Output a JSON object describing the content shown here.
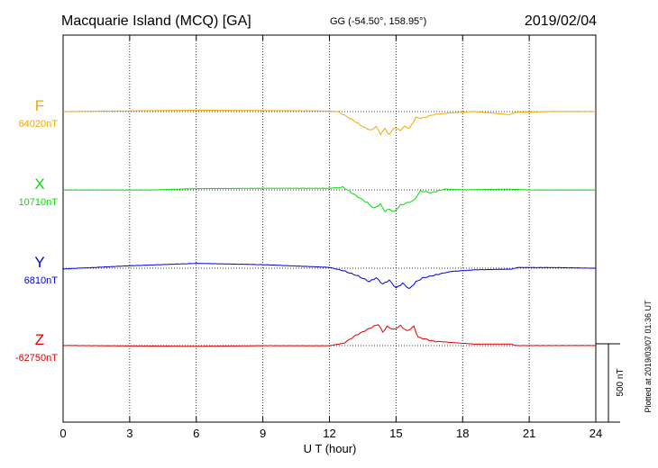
{
  "header": {
    "station": "Macquarie Island (MCQ)  [GA]",
    "coords": "GG (-54.50°, 158.95°)",
    "date": "2019/02/04"
  },
  "footer_note": "Plotted at 2019/03/07 01:36 UT",
  "chart_data": {
    "type": "line",
    "xlabel": "U T (hour)",
    "ylabel": "",
    "xlim": [
      0,
      24
    ],
    "xticks": [
      "0",
      "3",
      "6",
      "9",
      "12",
      "15",
      "18",
      "21",
      "24"
    ],
    "grid": true,
    "scale_bar_label": "500 nT",
    "series": [
      {
        "name": "F",
        "baseline_label": "64020nT",
        "color": "#f0a800",
        "points": [
          [
            0,
            0
          ],
          [
            6,
            10
          ],
          [
            11.5,
            5
          ],
          [
            12.4,
            0
          ],
          [
            13.0,
            -50
          ],
          [
            13.6,
            -105
          ],
          [
            13.9,
            -120
          ],
          [
            14.1,
            -95
          ],
          [
            14.3,
            -145
          ],
          [
            14.5,
            -110
          ],
          [
            14.7,
            -150
          ],
          [
            14.9,
            -105
          ],
          [
            15.2,
            -120
          ],
          [
            15.4,
            -95
          ],
          [
            15.6,
            -110
          ],
          [
            15.9,
            -40
          ],
          [
            16.2,
            -45
          ],
          [
            16.6,
            -25
          ],
          [
            17.3,
            -10
          ],
          [
            18.5,
            0
          ],
          [
            20.1,
            -20
          ],
          [
            20.4,
            -5
          ],
          [
            22,
            0
          ],
          [
            24,
            0
          ]
        ]
      },
      {
        "name": "X",
        "baseline_label": "10710nT",
        "color": "#00e000",
        "points": [
          [
            0,
            0
          ],
          [
            4,
            0
          ],
          [
            6,
            8
          ],
          [
            9,
            10
          ],
          [
            12,
            10
          ],
          [
            12.6,
            15
          ],
          [
            13.2,
            -40
          ],
          [
            13.7,
            -85
          ],
          [
            14.0,
            -120
          ],
          [
            14.3,
            -95
          ],
          [
            14.5,
            -140
          ],
          [
            14.7,
            -125
          ],
          [
            14.9,
            -145
          ],
          [
            15.2,
            -100
          ],
          [
            15.5,
            -85
          ],
          [
            15.8,
            -70
          ],
          [
            16.1,
            -10
          ],
          [
            16.6,
            -20
          ],
          [
            17.2,
            5
          ],
          [
            18,
            0
          ],
          [
            20,
            5
          ],
          [
            21,
            0
          ],
          [
            24,
            0
          ]
        ]
      },
      {
        "name": "Y",
        "baseline_label": "6810nT",
        "color": "#0000e0",
        "points": [
          [
            0,
            -5
          ],
          [
            3,
            15
          ],
          [
            6,
            30
          ],
          [
            9,
            22
          ],
          [
            12,
            5
          ],
          [
            12.6,
            -15
          ],
          [
            13.3,
            -50
          ],
          [
            13.8,
            -85
          ],
          [
            14.1,
            -60
          ],
          [
            14.4,
            -100
          ],
          [
            14.7,
            -75
          ],
          [
            15.0,
            -125
          ],
          [
            15.3,
            -95
          ],
          [
            15.6,
            -130
          ],
          [
            15.9,
            -85
          ],
          [
            16.2,
            -60
          ],
          [
            16.8,
            -40
          ],
          [
            17.5,
            -20
          ],
          [
            18.5,
            -10
          ],
          [
            20.2,
            -5
          ],
          [
            20.5,
            5
          ],
          [
            22,
            5
          ],
          [
            24,
            0
          ]
        ]
      },
      {
        "name": "Z",
        "baseline_label": "-62750nT",
        "color": "#e00000",
        "points": [
          [
            0,
            0
          ],
          [
            6,
            -5
          ],
          [
            9,
            0
          ],
          [
            12,
            0
          ],
          [
            12.6,
            15
          ],
          [
            13.2,
            70
          ],
          [
            13.9,
            120
          ],
          [
            14.2,
            140
          ],
          [
            14.4,
            90
          ],
          [
            14.6,
            125
          ],
          [
            14.9,
            105
          ],
          [
            15.2,
            130
          ],
          [
            15.5,
            95
          ],
          [
            15.8,
            125
          ],
          [
            16.0,
            55
          ],
          [
            16.3,
            45
          ],
          [
            16.7,
            30
          ],
          [
            17.5,
            20
          ],
          [
            18.5,
            10
          ],
          [
            20.2,
            10
          ],
          [
            20.4,
            0
          ],
          [
            22,
            0
          ],
          [
            24,
            0
          ]
        ]
      }
    ]
  }
}
